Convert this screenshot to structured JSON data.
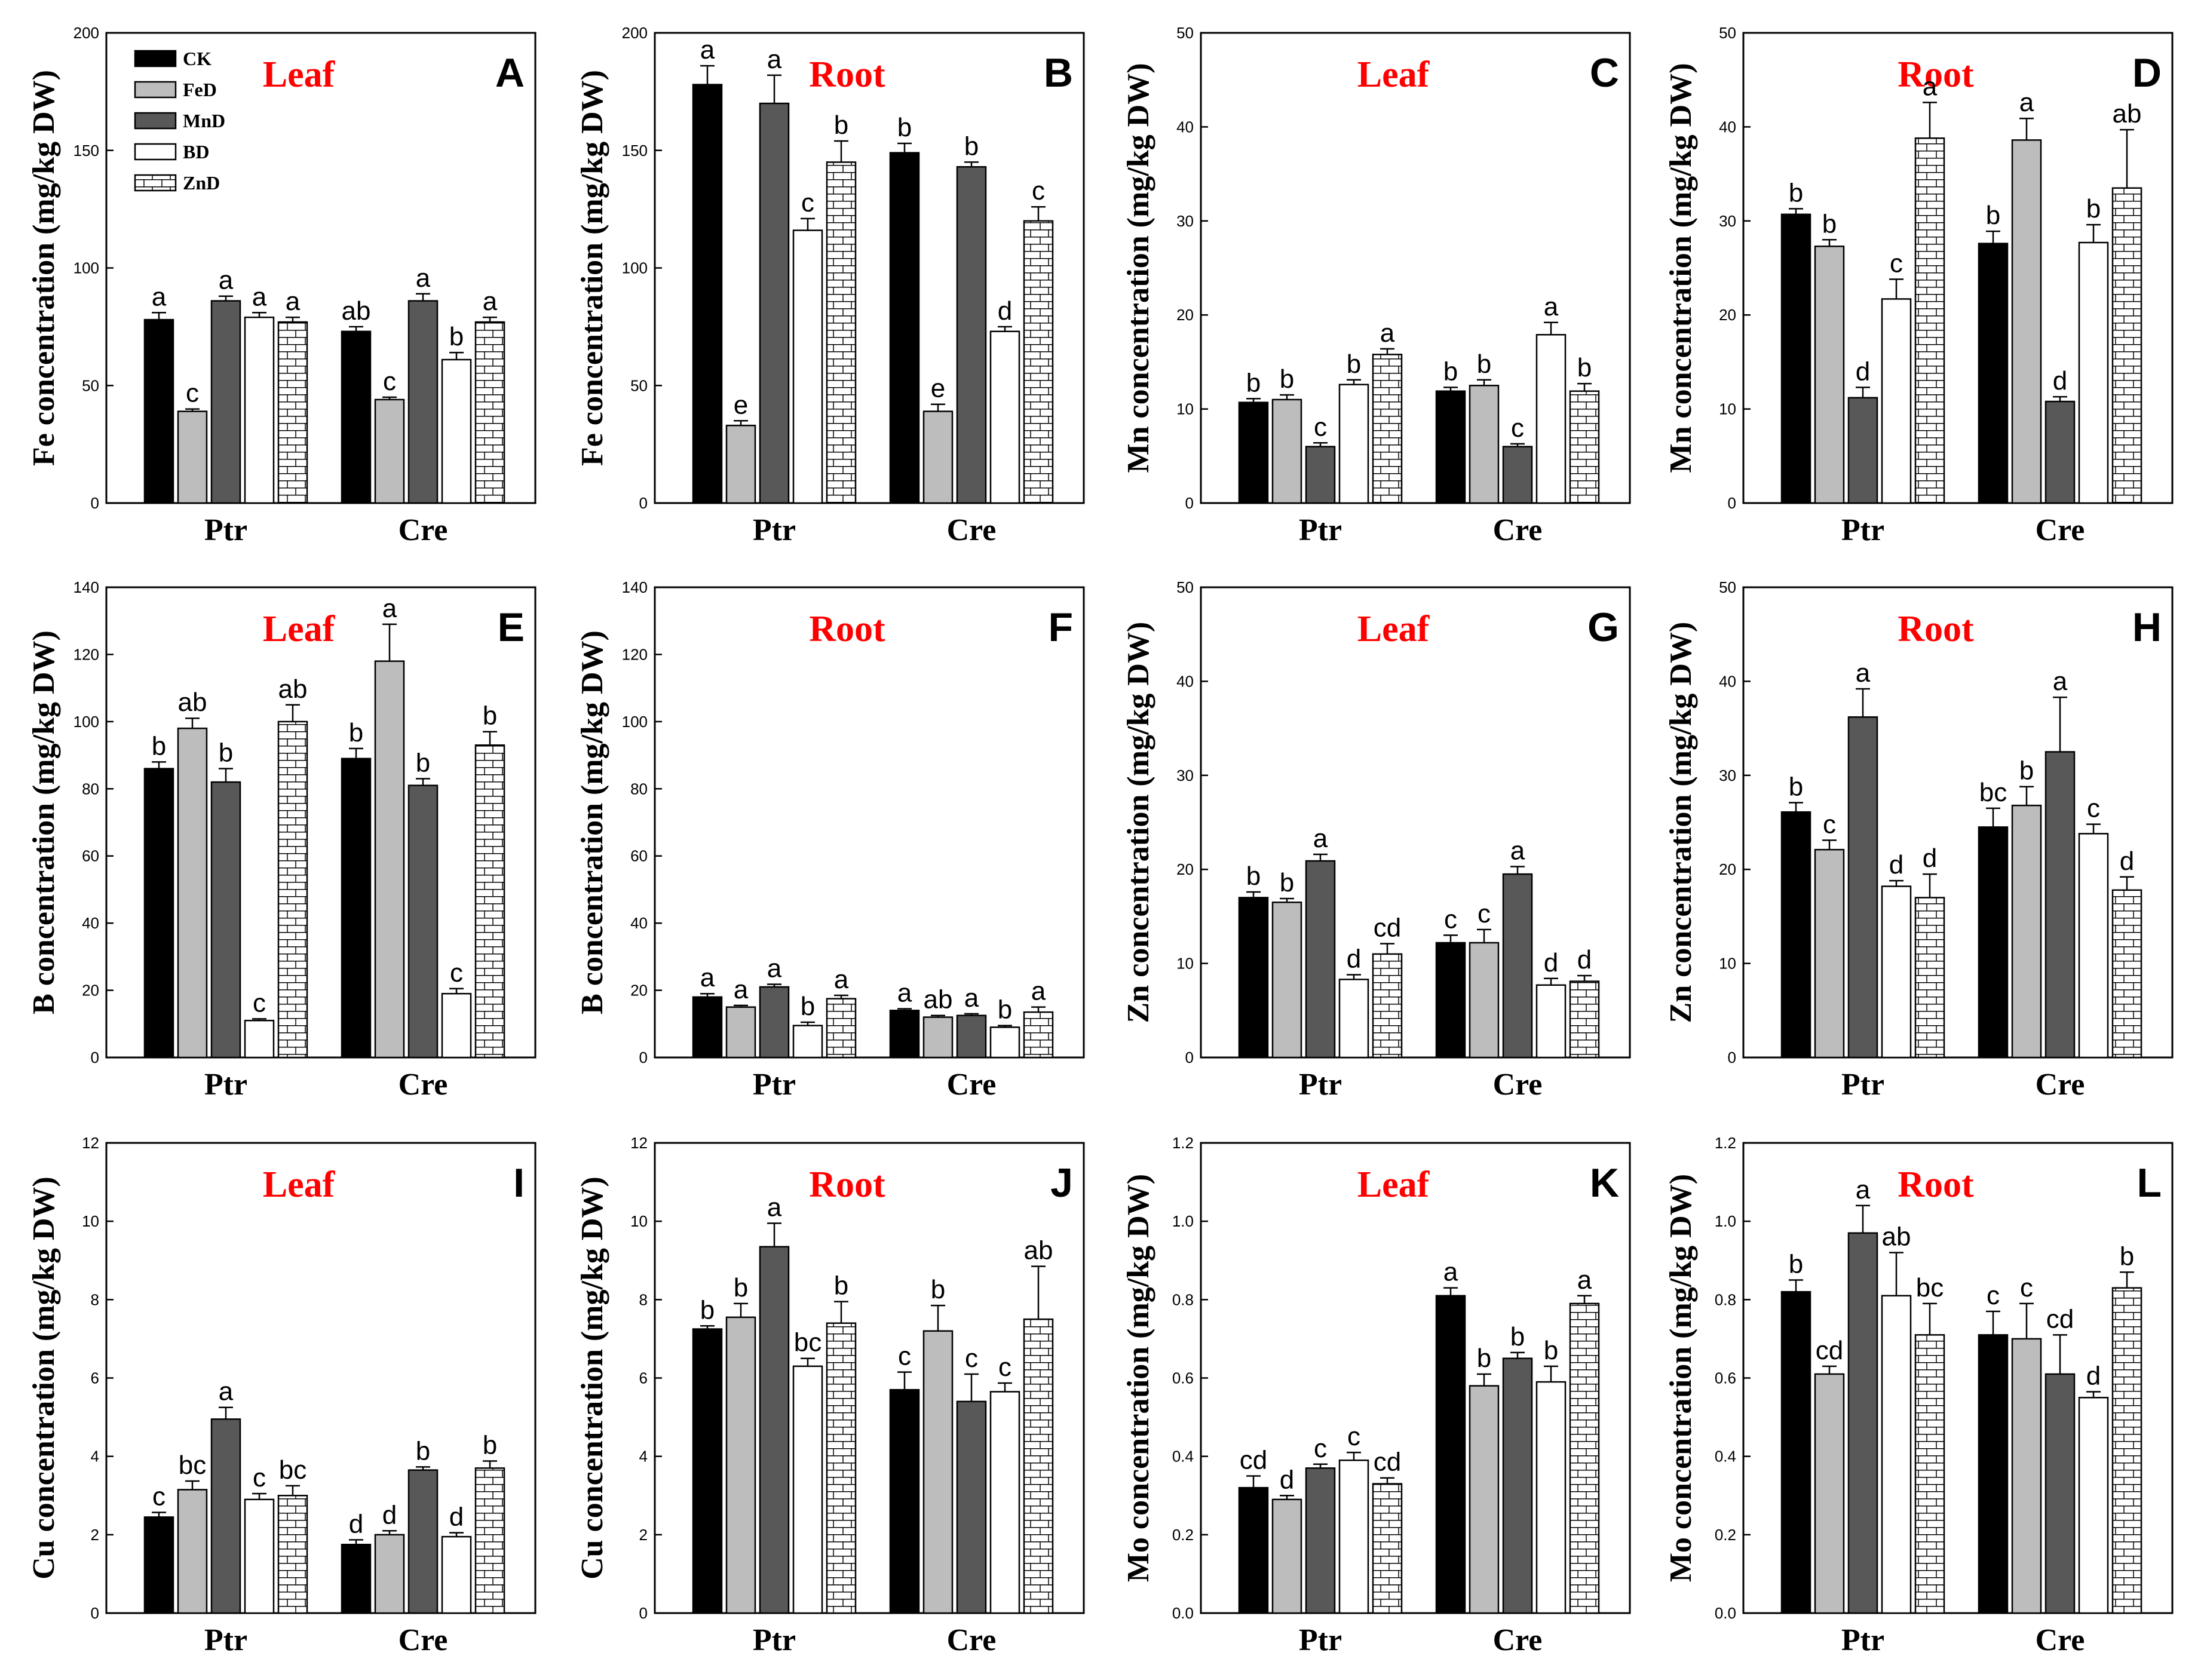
{
  "figure": {
    "series_names": [
      "CK",
      "FeD",
      "MnD",
      "BD",
      "ZnD"
    ],
    "series_fills": [
      "#000000",
      "#bdbdbd",
      "#585858",
      "#ffffff",
      "pattern"
    ],
    "title_color": "#ff0000",
    "categories": [
      "Ptr",
      "Cre"
    ]
  },
  "chart_data": [
    {
      "letter": "A",
      "title": "Leaf",
      "type": "bar",
      "ylabel": "Fe concentration (mg/kg DW)",
      "ylim": [
        0,
        200
      ],
      "yticks": [
        "0",
        "50",
        "100",
        "150",
        "200"
      ],
      "legend": true,
      "series": [
        {
          "name": "CK",
          "values": [
            78,
            73
          ],
          "errors": [
            3,
            2
          ],
          "labels": [
            "a",
            "ab"
          ]
        },
        {
          "name": "FeD",
          "values": [
            39,
            44
          ],
          "errors": [
            1,
            1
          ],
          "labels": [
            "c",
            "c"
          ]
        },
        {
          "name": "MnD",
          "values": [
            86,
            86
          ],
          "errors": [
            2,
            3
          ],
          "labels": [
            "a",
            "a"
          ]
        },
        {
          "name": "BD",
          "values": [
            79,
            61
          ],
          "errors": [
            2,
            3
          ],
          "labels": [
            "a",
            "b"
          ]
        },
        {
          "name": "ZnD",
          "values": [
            77,
            77
          ],
          "errors": [
            2,
            2
          ],
          "labels": [
            "a",
            "a"
          ]
        }
      ]
    },
    {
      "letter": "B",
      "title": "Root",
      "type": "bar",
      "ylabel": "Fe concentration (mg/kg DW)",
      "ylim": [
        0,
        200
      ],
      "yticks": [
        "0",
        "50",
        "100",
        "150",
        "200"
      ],
      "series": [
        {
          "name": "CK",
          "values": [
            178,
            149
          ],
          "errors": [
            8,
            4
          ],
          "labels": [
            "a",
            "b"
          ]
        },
        {
          "name": "FeD",
          "values": [
            33,
            39
          ],
          "errors": [
            2,
            3
          ],
          "labels": [
            "e",
            "e"
          ]
        },
        {
          "name": "MnD",
          "values": [
            170,
            143
          ],
          "errors": [
            12,
            2
          ],
          "labels": [
            "a",
            "b"
          ]
        },
        {
          "name": "BD",
          "values": [
            116,
            73
          ],
          "errors": [
            5,
            2
          ],
          "labels": [
            "c",
            "d"
          ]
        },
        {
          "name": "ZnD",
          "values": [
            145,
            120
          ],
          "errors": [
            9,
            6
          ],
          "labels": [
            "b",
            "c"
          ]
        }
      ]
    },
    {
      "letter": "C",
      "title": "Leaf",
      "type": "bar",
      "ylabel": "Mn concentration (mg/kg DW)",
      "ylim": [
        0,
        50
      ],
      "yticks": [
        "0",
        "10",
        "20",
        "30",
        "40",
        "50"
      ],
      "series": [
        {
          "name": "CK",
          "values": [
            10.7,
            11.9
          ],
          "errors": [
            0.4,
            0.4
          ],
          "labels": [
            "b",
            "b"
          ]
        },
        {
          "name": "FeD",
          "values": [
            11.0,
            12.5
          ],
          "errors": [
            0.5,
            0.6
          ],
          "labels": [
            "b",
            "b"
          ]
        },
        {
          "name": "MnD",
          "values": [
            6.0,
            6.0
          ],
          "errors": [
            0.4,
            0.3
          ],
          "labels": [
            "c",
            "c"
          ]
        },
        {
          "name": "BD",
          "values": [
            12.6,
            17.9
          ],
          "errors": [
            0.5,
            1.3
          ],
          "labels": [
            "b",
            "a"
          ]
        },
        {
          "name": "ZnD",
          "values": [
            15.8,
            11.9
          ],
          "errors": [
            0.6,
            0.8
          ],
          "labels": [
            "a",
            "b"
          ]
        }
      ]
    },
    {
      "letter": "D",
      "title": "Root",
      "type": "bar",
      "ylabel": "Mn concentration (mg/kg DW)",
      "ylim": [
        0,
        50
      ],
      "yticks": [
        "0",
        "10",
        "20",
        "30",
        "40",
        "50"
      ],
      "series": [
        {
          "name": "CK",
          "values": [
            30.7,
            27.6
          ],
          "errors": [
            0.6,
            1.3
          ],
          "labels": [
            "b",
            "b"
          ]
        },
        {
          "name": "FeD",
          "values": [
            27.3,
            38.6
          ],
          "errors": [
            0.7,
            2.3
          ],
          "labels": [
            "b",
            "a"
          ]
        },
        {
          "name": "MnD",
          "values": [
            11.2,
            10.8
          ],
          "errors": [
            1.1,
            0.5
          ],
          "labels": [
            "d",
            "d"
          ]
        },
        {
          "name": "BD",
          "values": [
            21.7,
            27.7
          ],
          "errors": [
            2.1,
            1.9
          ],
          "labels": [
            "c",
            "b"
          ]
        },
        {
          "name": "ZnD",
          "values": [
            38.8,
            33.5
          ],
          "errors": [
            3.8,
            6.2
          ],
          "labels": [
            "a",
            "ab"
          ]
        }
      ]
    },
    {
      "letter": "E",
      "title": "Leaf",
      "type": "bar",
      "ylabel": "B concentration (mg/kg DW)",
      "ylim": [
        0,
        140
      ],
      "yticks": [
        "0",
        "20",
        "40",
        "60",
        "80",
        "100",
        "120",
        "140"
      ],
      "series": [
        {
          "name": "CK",
          "values": [
            86,
            89
          ],
          "errors": [
            2,
            3
          ],
          "labels": [
            "b",
            "b"
          ]
        },
        {
          "name": "FeD",
          "values": [
            98,
            118
          ],
          "errors": [
            3,
            11
          ],
          "labels": [
            "ab",
            "a"
          ]
        },
        {
          "name": "MnD",
          "values": [
            82,
            81
          ],
          "errors": [
            4,
            2
          ],
          "labels": [
            "b",
            "b"
          ]
        },
        {
          "name": "BD",
          "values": [
            11,
            19
          ],
          "errors": [
            0.5,
            1.5
          ],
          "labels": [
            "c",
            "c"
          ]
        },
        {
          "name": "ZnD",
          "values": [
            100,
            93
          ],
          "errors": [
            5,
            4
          ],
          "labels": [
            "ab",
            "b"
          ]
        }
      ]
    },
    {
      "letter": "F",
      "title": "Root",
      "type": "bar",
      "ylabel": "B concentration (mg/kg DW)",
      "ylim": [
        0,
        140
      ],
      "yticks": [
        "0",
        "20",
        "40",
        "60",
        "80",
        "100",
        "120",
        "140"
      ],
      "series": [
        {
          "name": "CK",
          "values": [
            18,
            14
          ],
          "errors": [
            1,
            0.5
          ],
          "labels": [
            "a",
            "a"
          ]
        },
        {
          "name": "FeD",
          "values": [
            15,
            12
          ],
          "errors": [
            0.5,
            0.5
          ],
          "labels": [
            "a",
            "ab"
          ]
        },
        {
          "name": "MnD",
          "values": [
            21,
            12.5
          ],
          "errors": [
            0.8,
            0.5
          ],
          "labels": [
            "a",
            "a"
          ]
        },
        {
          "name": "BD",
          "values": [
            9.5,
            9
          ],
          "errors": [
            1,
            0.5
          ],
          "labels": [
            "b",
            "b"
          ]
        },
        {
          "name": "ZnD",
          "values": [
            17.5,
            13.5
          ],
          "errors": [
            1,
            1.5
          ],
          "labels": [
            "a",
            "a"
          ]
        }
      ]
    },
    {
      "letter": "G",
      "title": "Leaf",
      "type": "bar",
      "ylabel": "Zn concentration (mg/kg DW)",
      "ylim": [
        0,
        50
      ],
      "yticks": [
        "0",
        "10",
        "20",
        "30",
        "40",
        "50"
      ],
      "series": [
        {
          "name": "CK",
          "values": [
            17,
            12.2
          ],
          "errors": [
            0.6,
            0.8
          ],
          "labels": [
            "b",
            "c"
          ]
        },
        {
          "name": "FeD",
          "values": [
            16.5,
            12.2
          ],
          "errors": [
            0.4,
            1.4
          ],
          "labels": [
            "b",
            "c"
          ]
        },
        {
          "name": "MnD",
          "values": [
            20.9,
            19.5
          ],
          "errors": [
            0.7,
            0.8
          ],
          "labels": [
            "a",
            "a"
          ]
        },
        {
          "name": "BD",
          "values": [
            8.3,
            7.7
          ],
          "errors": [
            0.5,
            0.7
          ],
          "labels": [
            "d",
            "d"
          ]
        },
        {
          "name": "ZnD",
          "values": [
            11,
            8.1
          ],
          "errors": [
            1.1,
            0.6
          ],
          "labels": [
            "cd",
            "d"
          ]
        }
      ]
    },
    {
      "letter": "H",
      "title": "Root",
      "type": "bar",
      "ylabel": "Zn concentration (mg/kg DW)",
      "ylim": [
        0,
        50
      ],
      "yticks": [
        "0",
        "10",
        "20",
        "30",
        "40",
        "50"
      ],
      "series": [
        {
          "name": "CK",
          "values": [
            26.1,
            24.5
          ],
          "errors": [
            1.0,
            2.0
          ],
          "labels": [
            "b",
            "bc"
          ]
        },
        {
          "name": "FeD",
          "values": [
            22.1,
            26.8
          ],
          "errors": [
            1.0,
            2.0
          ],
          "labels": [
            "c",
            "b"
          ]
        },
        {
          "name": "MnD",
          "values": [
            36.2,
            32.5
          ],
          "errors": [
            3.0,
            5.8
          ],
          "labels": [
            "a",
            "a"
          ]
        },
        {
          "name": "BD",
          "values": [
            18.2,
            23.8
          ],
          "errors": [
            0.6,
            1.0
          ],
          "labels": [
            "d",
            "c"
          ]
        },
        {
          "name": "ZnD",
          "values": [
            17,
            17.8
          ],
          "errors": [
            2.5,
            1.4
          ],
          "labels": [
            "d",
            "d"
          ]
        }
      ]
    },
    {
      "letter": "I",
      "title": "Leaf",
      "type": "bar",
      "ylabel": "Cu concentration (mg/kg DW)",
      "ylim": [
        0,
        12
      ],
      "yticks": [
        "0",
        "2",
        "4",
        "6",
        "8",
        "10",
        "12"
      ],
      "series": [
        {
          "name": "CK",
          "values": [
            2.45,
            1.75
          ],
          "errors": [
            0.12,
            0.12
          ],
          "labels": [
            "c",
            "d"
          ]
        },
        {
          "name": "FeD",
          "values": [
            3.15,
            2.0
          ],
          "errors": [
            0.22,
            0.1
          ],
          "labels": [
            "bc",
            "d"
          ]
        },
        {
          "name": "MnD",
          "values": [
            4.95,
            3.65
          ],
          "errors": [
            0.3,
            0.08
          ],
          "labels": [
            "a",
            "b"
          ]
        },
        {
          "name": "BD",
          "values": [
            2.9,
            1.95
          ],
          "errors": [
            0.15,
            0.1
          ],
          "labels": [
            "c",
            "d"
          ]
        },
        {
          "name": "ZnD",
          "values": [
            3.0,
            3.7
          ],
          "errors": [
            0.25,
            0.18
          ],
          "labels": [
            "bc",
            "b"
          ]
        }
      ]
    },
    {
      "letter": "J",
      "title": "Root",
      "type": "bar",
      "ylabel": "Cu concentration (mg/kg DW)",
      "ylim": [
        0,
        12
      ],
      "yticks": [
        "0",
        "2",
        "4",
        "6",
        "8",
        "10",
        "12"
      ],
      "series": [
        {
          "name": "CK",
          "values": [
            7.25,
            5.7
          ],
          "errors": [
            0.08,
            0.45
          ],
          "labels": [
            "b",
            "c"
          ]
        },
        {
          "name": "FeD",
          "values": [
            7.55,
            7.2
          ],
          "errors": [
            0.35,
            0.65
          ],
          "labels": [
            "b",
            "b"
          ]
        },
        {
          "name": "MnD",
          "values": [
            9.35,
            5.4
          ],
          "errors": [
            0.6,
            0.7
          ],
          "labels": [
            "a",
            "c"
          ]
        },
        {
          "name": "BD",
          "values": [
            6.3,
            5.65
          ],
          "errors": [
            0.2,
            0.22
          ],
          "labels": [
            "bc",
            "c"
          ]
        },
        {
          "name": "ZnD",
          "values": [
            7.4,
            7.5
          ],
          "errors": [
            0.55,
            1.35
          ],
          "labels": [
            "b",
            "ab"
          ]
        }
      ]
    },
    {
      "letter": "K",
      "title": "Leaf",
      "type": "bar",
      "ylabel": "Mo concentration (mg/kg DW)",
      "ylim": [
        0,
        1.2
      ],
      "yticks": [
        "0.0",
        "0.2",
        "0.4",
        "0.6",
        "0.8",
        "1.0",
        "1.2"
      ],
      "series": [
        {
          "name": "CK",
          "values": [
            0.32,
            0.81
          ],
          "errors": [
            0.03,
            0.02
          ],
          "labels": [
            "cd",
            "a"
          ]
        },
        {
          "name": "FeD",
          "values": [
            0.29,
            0.58
          ],
          "errors": [
            0.01,
            0.03
          ],
          "labels": [
            "d",
            "b"
          ]
        },
        {
          "name": "MnD",
          "values": [
            0.37,
            0.65
          ],
          "errors": [
            0.01,
            0.015
          ],
          "labels": [
            "c",
            "b"
          ]
        },
        {
          "name": "BD",
          "values": [
            0.39,
            0.59
          ],
          "errors": [
            0.02,
            0.04
          ],
          "labels": [
            "c",
            "b"
          ]
        },
        {
          "name": "ZnD",
          "values": [
            0.33,
            0.79
          ],
          "errors": [
            0.015,
            0.02
          ],
          "labels": [
            "cd",
            "a"
          ]
        }
      ]
    },
    {
      "letter": "L",
      "title": "Root",
      "type": "bar",
      "ylabel": "Mo concentration (mg/kg DW)",
      "ylim": [
        0,
        1.2
      ],
      "yticks": [
        "0.0",
        "0.2",
        "0.4",
        "0.6",
        "0.8",
        "1.0",
        "1.2"
      ],
      "series": [
        {
          "name": "CK",
          "values": [
            0.82,
            0.71
          ],
          "errors": [
            0.03,
            0.06
          ],
          "labels": [
            "b",
            "c"
          ]
        },
        {
          "name": "FeD",
          "values": [
            0.61,
            0.7
          ],
          "errors": [
            0.02,
            0.09
          ],
          "labels": [
            "cd",
            "c"
          ]
        },
        {
          "name": "MnD",
          "values": [
            0.97,
            0.61
          ],
          "errors": [
            0.07,
            0.1
          ],
          "labels": [
            "a",
            "cd"
          ]
        },
        {
          "name": "BD",
          "values": [
            0.81,
            0.55
          ],
          "errors": [
            0.11,
            0.015
          ],
          "labels": [
            "ab",
            "d"
          ]
        },
        {
          "name": "ZnD",
          "values": [
            0.71,
            0.83
          ],
          "errors": [
            0.08,
            0.04
          ],
          "labels": [
            "bc",
            "b"
          ]
        }
      ]
    }
  ]
}
